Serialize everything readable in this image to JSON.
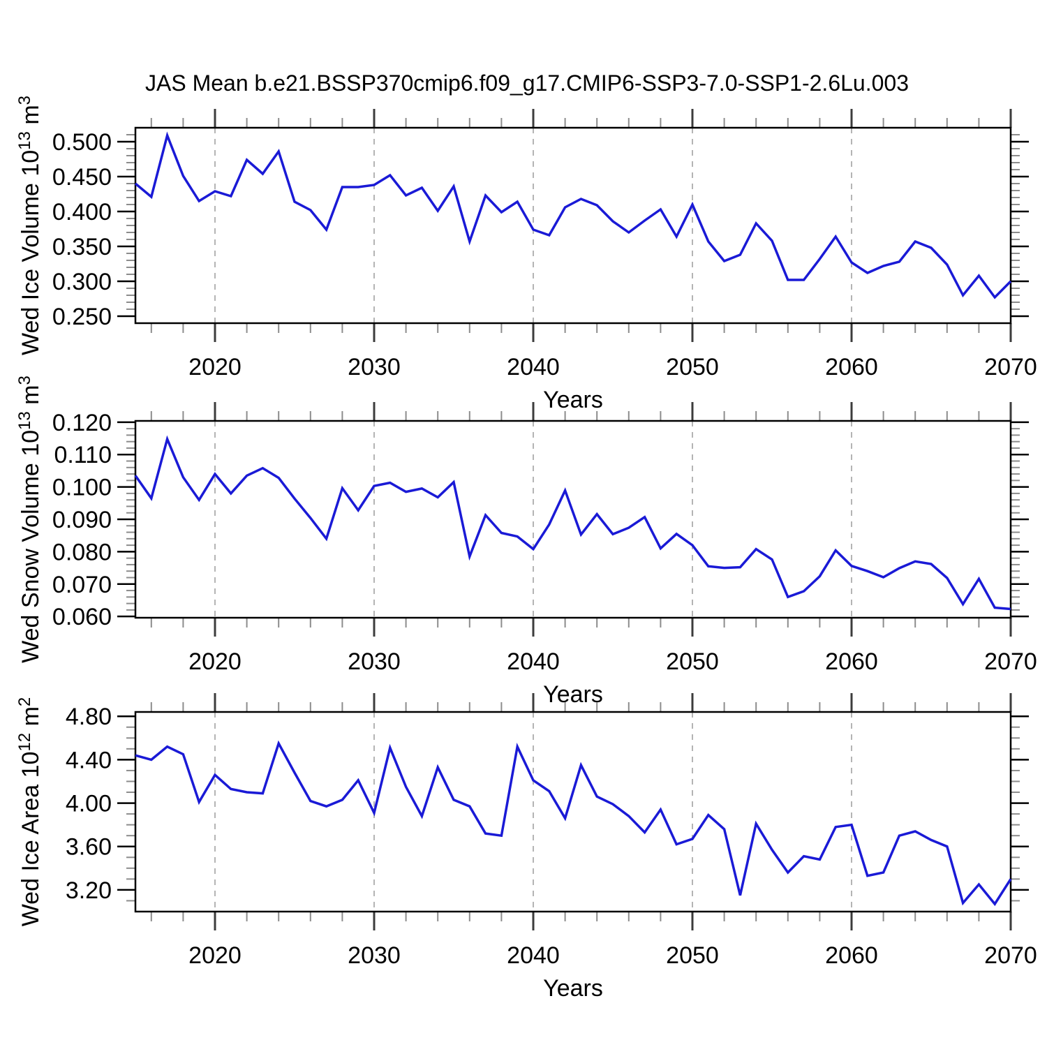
{
  "title": "JAS Mean b.e21.BSSP370cmip6.f09_g17.CMIP6-SSP3-7.0-SSP1-2.6Lu.003",
  "colors": {
    "background": "#ffffff",
    "line": "#1a1ad6",
    "frame": "#000000",
    "y_major_tick": "#000000",
    "x_major_tick": "#3c3c3c",
    "minor_tick": "#8c8c8c",
    "gridline": "#b4b4b4",
    "text": "#000000"
  },
  "x_axis": {
    "label": "Years",
    "xlim": [
      2015,
      2070
    ],
    "major_ticks": [
      2020,
      2030,
      2040,
      2050,
      2060,
      2070
    ],
    "minor_tick_step": 2,
    "gridline_years": [
      2020,
      2030,
      2040,
      2050,
      2060
    ],
    "years": [
      2015,
      2016,
      2017,
      2018,
      2019,
      2020,
      2021,
      2022,
      2023,
      2024,
      2025,
      2026,
      2027,
      2028,
      2029,
      2030,
      2031,
      2032,
      2033,
      2034,
      2035,
      2036,
      2037,
      2038,
      2039,
      2040,
      2041,
      2042,
      2043,
      2044,
      2045,
      2046,
      2047,
      2048,
      2049,
      2050,
      2051,
      2052,
      2053,
      2054,
      2055,
      2056,
      2057,
      2058,
      2059,
      2060,
      2061,
      2062,
      2063,
      2064,
      2065,
      2066,
      2067,
      2068,
      2069,
      2070
    ]
  },
  "chart_data": [
    {
      "type": "line",
      "name": "wed-ice-volume",
      "ylabel_plain": "Wed Ice Volume 10^13 m^3",
      "ylabel_segments": [
        {
          "text": "Wed Ice Volume 10",
          "sup": false
        },
        {
          "text": "13",
          "sup": true
        },
        {
          "text": " m",
          "sup": false
        },
        {
          "text": "3",
          "sup": true
        }
      ],
      "ylim": [
        0.24,
        0.52
      ],
      "y_major_start": 0.25,
      "y_major_end": 0.5,
      "y_major_step": 0.05,
      "y_minor_step": 0.01,
      "tick_decimals": 3,
      "values": [
        0.44,
        0.421,
        0.509,
        0.451,
        0.415,
        0.429,
        0.422,
        0.474,
        0.454,
        0.486,
        0.414,
        0.402,
        0.374,
        0.435,
        0.435,
        0.438,
        0.452,
        0.423,
        0.434,
        0.401,
        0.436,
        0.357,
        0.423,
        0.399,
        0.414,
        0.374,
        0.366,
        0.406,
        0.418,
        0.409,
        0.386,
        0.37,
        0.387,
        0.403,
        0.364,
        0.41,
        0.357,
        0.329,
        0.338,
        0.383,
        0.358,
        0.302,
        0.302,
        0.332,
        0.364,
        0.327,
        0.312,
        0.322,
        0.328,
        0.357,
        0.348,
        0.324,
        0.28,
        0.308,
        0.277,
        0.3
      ]
    },
    {
      "type": "line",
      "name": "wed-snow-volume",
      "ylabel_plain": "Wed Snow Volume 10^13 m^3",
      "ylabel_segments": [
        {
          "text": "Wed Snow Volume 10",
          "sup": false
        },
        {
          "text": "13",
          "sup": true
        },
        {
          "text": " m",
          "sup": false
        },
        {
          "text": "3",
          "sup": true
        }
      ],
      "ylim": [
        0.0596,
        0.1204
      ],
      "y_major_start": 0.06,
      "y_major_end": 0.12,
      "y_major_step": 0.01,
      "y_minor_step": 0.002,
      "tick_decimals": 3,
      "values": [
        0.1035,
        0.0965,
        0.1148,
        0.103,
        0.096,
        0.104,
        0.098,
        0.1035,
        0.1058,
        0.1028,
        0.0964,
        0.0904,
        0.084,
        0.0996,
        0.0928,
        0.1003,
        0.1013,
        0.0985,
        0.0995,
        0.0968,
        0.1015,
        0.0785,
        0.0913,
        0.0858,
        0.0847,
        0.0808,
        0.0884,
        0.0989,
        0.0853,
        0.0916,
        0.0854,
        0.0874,
        0.0907,
        0.081,
        0.0855,
        0.082,
        0.0755,
        0.075,
        0.0752,
        0.0808,
        0.0776,
        0.066,
        0.0678,
        0.0724,
        0.0804,
        0.0756,
        0.074,
        0.0721,
        0.0749,
        0.077,
        0.0762,
        0.0719,
        0.0638,
        0.0716,
        0.0627,
        0.0623
      ]
    },
    {
      "type": "line",
      "name": "wed-ice-area",
      "ylabel_plain": "Wed Ice Area 10^12 m^2",
      "ylabel_segments": [
        {
          "text": "Wed Ice Area 10",
          "sup": false
        },
        {
          "text": "12",
          "sup": true
        },
        {
          "text": " m",
          "sup": false
        },
        {
          "text": "2",
          "sup": true
        }
      ],
      "ylim": [
        3.0,
        4.84
      ],
      "y_major_start": 3.2,
      "y_major_end": 4.8,
      "y_major_step": 0.4,
      "y_minor_step": 0.1,
      "tick_decimals": 2,
      "values": [
        4.44,
        4.4,
        4.52,
        4.45,
        4.01,
        4.26,
        4.13,
        4.1,
        4.09,
        4.55,
        4.28,
        4.02,
        3.97,
        4.03,
        4.21,
        3.91,
        4.51,
        4.15,
        3.88,
        4.33,
        4.03,
        3.97,
        3.72,
        3.7,
        4.52,
        4.21,
        4.11,
        3.86,
        4.35,
        4.06,
        3.99,
        3.88,
        3.73,
        3.94,
        3.62,
        3.67,
        3.89,
        3.76,
        3.15,
        3.81,
        3.57,
        3.36,
        3.51,
        3.48,
        3.78,
        3.8,
        3.33,
        3.36,
        3.7,
        3.74,
        3.66,
        3.6,
        3.08,
        3.25,
        3.07,
        3.3
      ]
    }
  ]
}
